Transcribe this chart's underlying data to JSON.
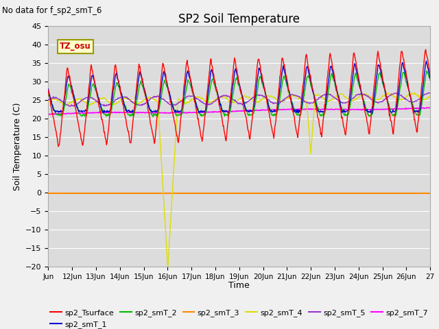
{
  "title": "SP2 Soil Temperature",
  "ylabel": "Soil Temperature (C)",
  "xlabel": "Time",
  "no_data_text": "No data for f_sp2_smT_6",
  "tz_label": "TZ_osu",
  "ylim": [
    -20,
    45
  ],
  "yticks": [
    -20,
    -15,
    -10,
    -5,
    0,
    5,
    10,
    15,
    20,
    25,
    30,
    35,
    40,
    45
  ],
  "x_start": 11,
  "x_end": 27,
  "xtick_positions": [
    11,
    12,
    13,
    14,
    15,
    16,
    17,
    18,
    19,
    20,
    21,
    22,
    23,
    24,
    25,
    26,
    27
  ],
  "xtick_labels": [
    "Jun",
    "12Jun",
    "13Jun",
    "14Jun",
    "15Jun",
    "16Jun",
    "17Jun",
    "18Jun",
    "19Jun",
    "20Jun",
    "21Jun",
    "22Jun",
    "23Jun",
    "24Jun",
    "25Jun",
    "26Jun",
    "27"
  ],
  "plot_bg_color": "#dcdcdc",
  "below_zero_bg": "#c8c8c8",
  "grid_color": "#ffffff",
  "series_colors": {
    "sp2_Tsurface": "#ff0000",
    "sp2_smT_1": "#0000cc",
    "sp2_smT_2": "#00bb00",
    "sp2_smT_3": "#ff8800",
    "sp2_smT_4": "#dddd00",
    "sp2_smT_5": "#9933cc",
    "sp2_smT_7": "#ff00ff"
  },
  "fig_bg_color": "#f0f0f0"
}
